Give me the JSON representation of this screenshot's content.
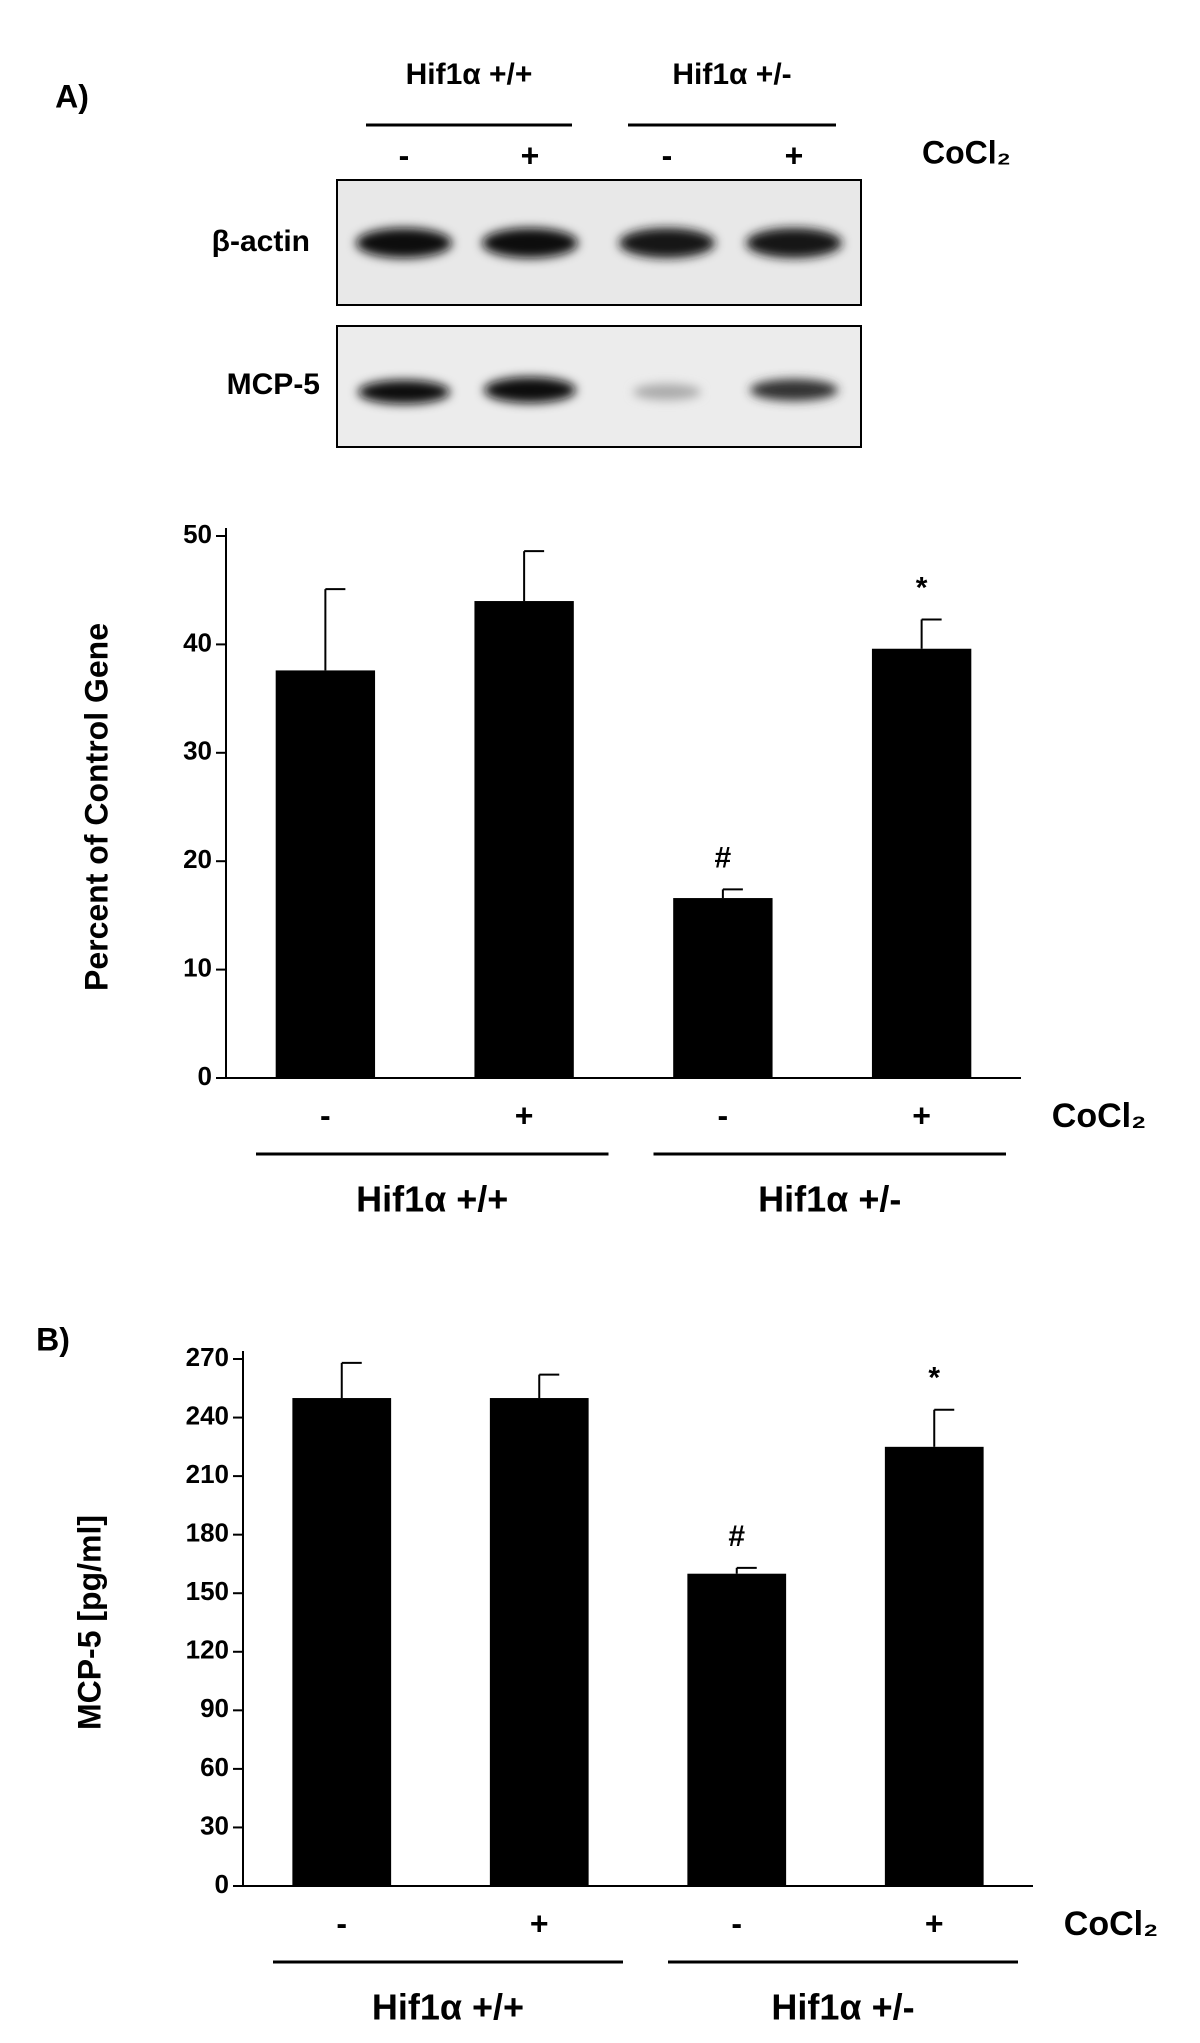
{
  "gel": {
    "panel_label": "A)",
    "groups": [
      "Hif1α +/+",
      "Hif1α +/-"
    ],
    "lanes": [
      "-",
      "+",
      "-",
      "+"
    ],
    "treatment": "CoCl₂",
    "rows": [
      "β-actin",
      "MCP-5"
    ]
  },
  "chart_data": [
    {
      "type": "bar",
      "ylabel": "Percent of Control Gene",
      "categories": [
        "-",
        "+",
        "-",
        "+"
      ],
      "groups": [
        "Hif1α +/+",
        "Hif1α +/-"
      ],
      "treatment": "CoCl₂",
      "values": [
        37.6,
        44,
        16.6,
        39.6
      ],
      "errors": [
        7.5,
        4.6,
        0.8,
        2.7
      ],
      "annotations": [
        null,
        null,
        "#",
        "*"
      ],
      "color": "#000000",
      "ylim": [
        0,
        50
      ],
      "yticks": [
        0,
        10,
        20,
        30,
        40,
        50
      ]
    },
    {
      "type": "bar",
      "panel_label": "B)",
      "ylabel": "MCP-5 [pg/ml]",
      "categories": [
        "-",
        "+",
        "-",
        "+"
      ],
      "groups": [
        "Hif1α +/+",
        "Hif1α +/-"
      ],
      "treatment": "CoCl₂",
      "values": [
        250,
        250,
        160,
        225
      ],
      "errors": [
        18,
        12,
        3,
        19
      ],
      "annotations": [
        null,
        null,
        "#",
        "*"
      ],
      "color": "#000000",
      "ylim": [
        0,
        270
      ],
      "yticks": [
        0,
        30,
        60,
        90,
        120,
        150,
        180,
        210,
        240,
        270
      ]
    }
  ]
}
